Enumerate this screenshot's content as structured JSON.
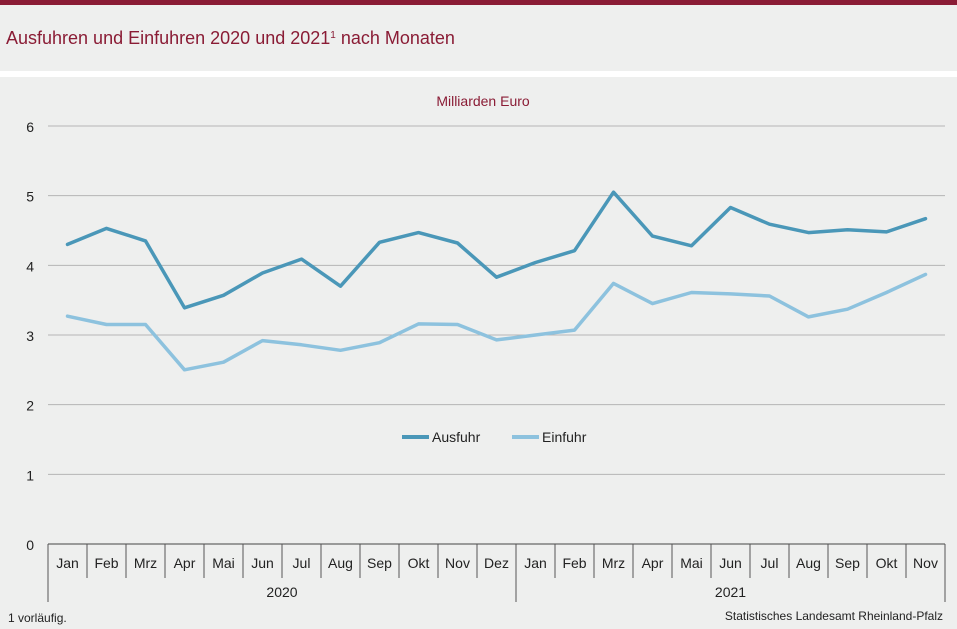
{
  "header": {
    "title": "Ausfuhren und Einfuhren 2020 und 2021",
    "title_footnote_mark": "1",
    "title_suffix": " nach Monaten"
  },
  "footer": {
    "footnote": "1 vorläufig.",
    "source": "Statistisches Landesamt  Rheinland-Pfalz"
  },
  "colors": {
    "brand": "#8a1c35",
    "ausfuhr": "#4a97b8",
    "einfuhr": "#8dc2de"
  },
  "chart_data": {
    "type": "line",
    "unit_label": "Milliarden Euro",
    "ylim": [
      0,
      6
    ],
    "yticks": [
      0,
      1,
      2,
      3,
      4,
      5,
      6
    ],
    "grid": true,
    "legend_position": "center",
    "categories": [
      "Jan",
      "Feb",
      "Mrz",
      "Apr",
      "Mai",
      "Jun",
      "Jul",
      "Aug",
      "Sep",
      "Okt",
      "Nov",
      "Dez",
      "Jan",
      "Feb",
      "Mrz",
      "Apr",
      "Mai",
      "Jun",
      "Jul",
      "Aug",
      "Sep",
      "Okt",
      "Nov"
    ],
    "years": [
      {
        "label": "2020",
        "count": 12
      },
      {
        "label": "2021",
        "count": 11
      }
    ],
    "series": [
      {
        "name": "Ausfuhr",
        "color": "#4a97b8",
        "values": [
          4.3,
          4.53,
          4.35,
          3.39,
          3.57,
          3.89,
          4.09,
          3.7,
          4.33,
          4.47,
          4.32,
          3.83,
          4.04,
          4.21,
          5.05,
          4.42,
          4.28,
          4.83,
          4.59,
          4.47,
          4.51,
          4.48,
          4.67
        ]
      },
      {
        "name": "Einfuhr",
        "color": "#8dc2de",
        "values": [
          3.27,
          3.15,
          3.15,
          2.5,
          2.61,
          2.92,
          2.86,
          2.78,
          2.89,
          3.16,
          3.15,
          2.93,
          3.0,
          3.07,
          3.74,
          3.45,
          3.61,
          3.59,
          3.56,
          3.26,
          3.37,
          3.61,
          3.87
        ]
      }
    ]
  }
}
